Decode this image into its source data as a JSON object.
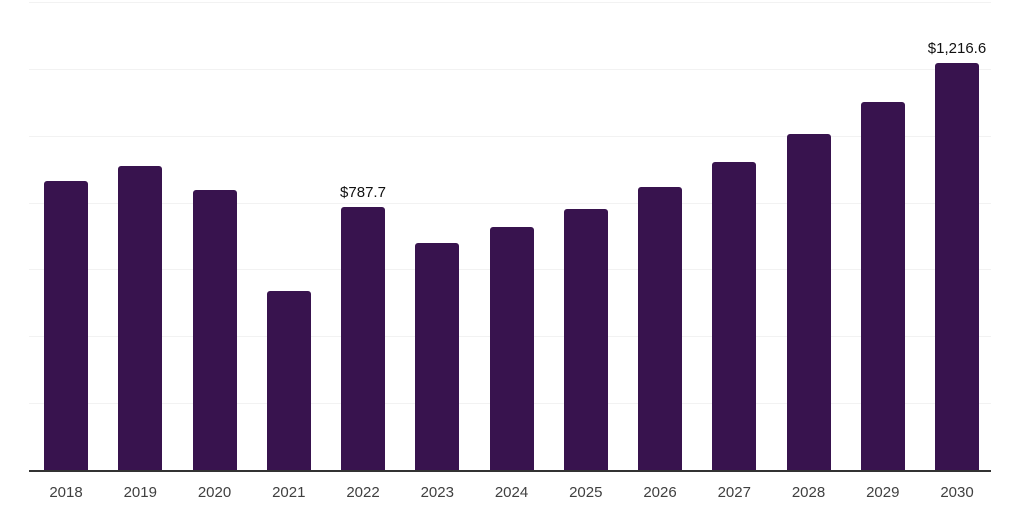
{
  "chart_data": {
    "type": "bar",
    "title": "",
    "xlabel": "",
    "ylabel": "",
    "categories": [
      "2018",
      "2019",
      "2020",
      "2021",
      "2022",
      "2023",
      "2024",
      "2025",
      "2026",
      "2027",
      "2028",
      "2029",
      "2030"
    ],
    "values": [
      864,
      910,
      838,
      535,
      787.7,
      680,
      726,
      781,
      847,
      921,
      1004,
      1101,
      1216.6
    ],
    "data_labels": [
      "",
      "",
      "",
      "",
      "$787.7",
      "",
      "",
      "",
      "",
      "",
      "",
      "",
      "$1,216.6"
    ],
    "ylim": [
      0,
      1400
    ],
    "gridline_interval": 200,
    "grid": true,
    "legend": false,
    "value_unit": "USD",
    "colors": {
      "bar": "#38134e",
      "gridline": "#f2f2f2",
      "axis_line": "#333333",
      "tick_label": "#404040",
      "data_label": "#111111",
      "background": "#ffffff"
    }
  }
}
